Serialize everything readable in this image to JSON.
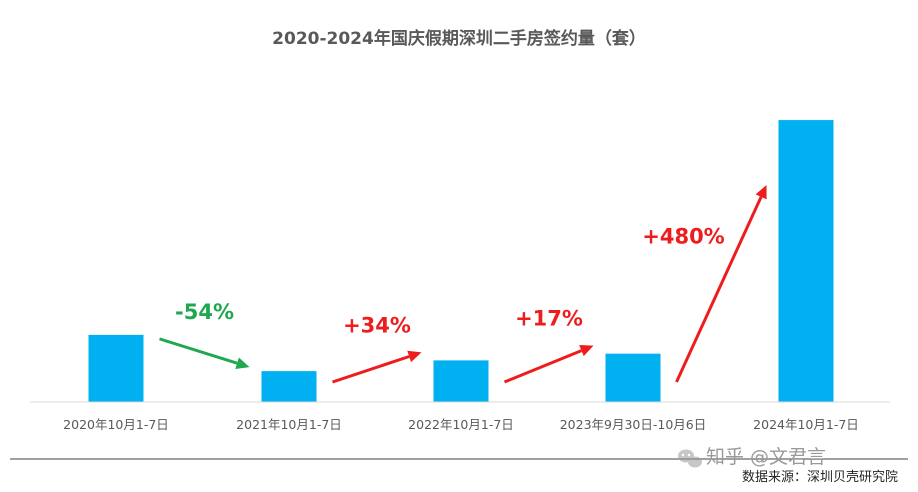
{
  "chart_data": {
    "type": "bar",
    "title": "2020-2024年国庆假期深圳二手房签约量（套）",
    "categories": [
      "2020年10月1-7日",
      "2021年10月1-7日",
      "2022年10月1-7日",
      "2023年9月30日-10月6日",
      "2024年10月1-7日"
    ],
    "values": [
      100,
      46,
      62,
      72,
      420
    ],
    "ylim": [
      0,
      435
    ],
    "grid": false,
    "legend": "none",
    "bar_color": "#00b0f0",
    "annotations": [
      {
        "from": 0,
        "to": 1,
        "text": "-54%",
        "color": "#1fa84f"
      },
      {
        "from": 1,
        "to": 2,
        "text": "+34%",
        "color": "#ee1c1c"
      },
      {
        "from": 2,
        "to": 3,
        "text": "+17%",
        "color": "#ee1c1c"
      },
      {
        "from": 3,
        "to": 4,
        "text": "+480%",
        "color": "#ee1c1c"
      }
    ]
  },
  "watermark": {
    "icon": "wechat-icon",
    "text": "知乎 @文君言"
  },
  "source_note": "数据来源：深圳贝壳研究院"
}
